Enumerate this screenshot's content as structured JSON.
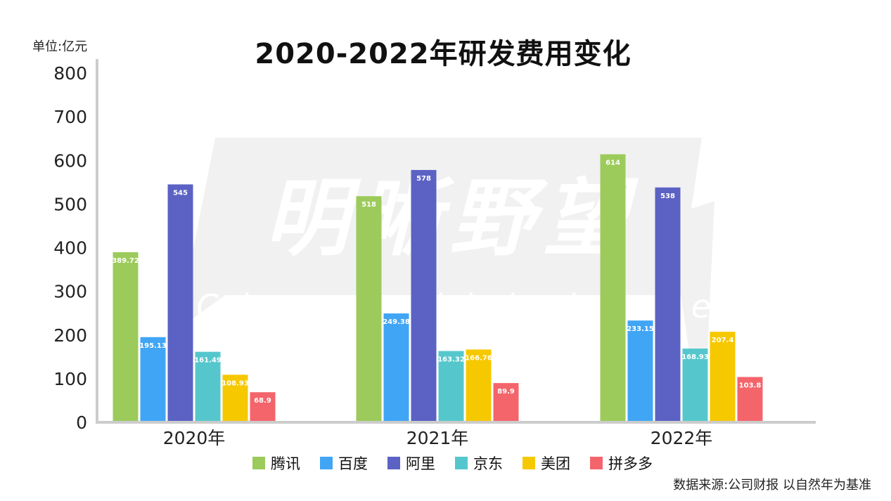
{
  "page": {
    "title": "2020-2022年研发费用变化",
    "unit_label": "单位:亿元",
    "source": "数据来源:公司财报 以自然年为基准",
    "watermark": "明晰野望 Clearwild hope"
  },
  "chart_data": {
    "type": "bar",
    "title": "2020-2022年研发费用变化",
    "xlabel": "",
    "ylabel": "单位:亿元",
    "ylim": [
      0,
      800
    ],
    "yticks": [
      0,
      100,
      200,
      300,
      400,
      500,
      600,
      700,
      800
    ],
    "grid": false,
    "legend_position": "bottom",
    "categories": [
      "2020年",
      "2021年",
      "2022年"
    ],
    "series": [
      {
        "name": "腾讯",
        "color": "#9ccb5b",
        "values": [
          389.72,
          518,
          614
        ],
        "labels": [
          "389.72",
          "518",
          "614"
        ]
      },
      {
        "name": "百度",
        "color": "#41a5f5",
        "values": [
          195.13,
          249.38,
          233.15
        ],
        "labels": [
          "195.13",
          "249.38",
          "233.15"
        ]
      },
      {
        "name": "阿里",
        "color": "#5b62c4",
        "values": [
          545,
          578,
          538
        ],
        "labels": [
          "545",
          "578",
          "538"
        ]
      },
      {
        "name": "京东",
        "color": "#55c7cc",
        "values": [
          161.49,
          163.32,
          168.93
        ],
        "labels": [
          "161.49",
          "163.32",
          "168.93"
        ]
      },
      {
        "name": "美团",
        "color": "#f6c800",
        "values": [
          108.93,
          166.76,
          207.4
        ],
        "labels": [
          "108.93",
          "166.76",
          "207.4"
        ]
      },
      {
        "name": "拼多多",
        "color": "#f4646b",
        "values": [
          68.9,
          89.9,
          103.8
        ],
        "labels": [
          "68.9",
          "89.9",
          "103.8"
        ]
      }
    ]
  }
}
